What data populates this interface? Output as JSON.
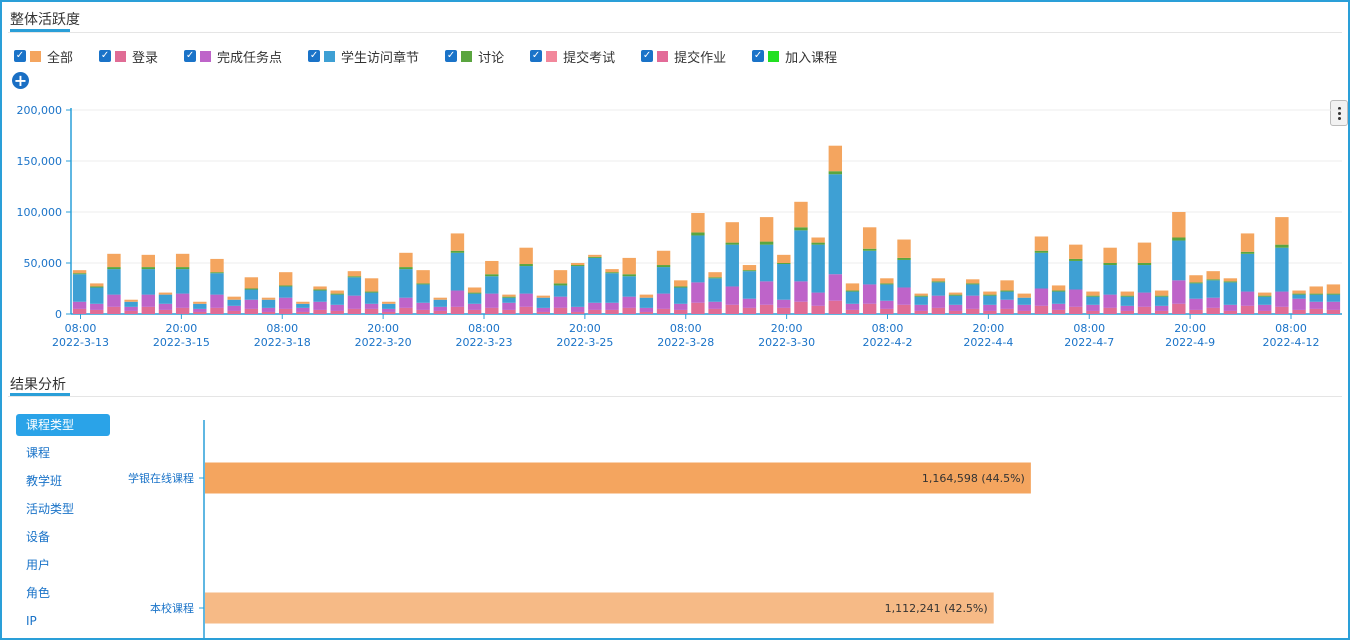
{
  "sections": {
    "activity_title": "整体活跃度",
    "analysis_title": "结果分析"
  },
  "legend": [
    {
      "label": "全部",
      "color": "#f4a55f"
    },
    {
      "label": "登录",
      "color": "#e06c95"
    },
    {
      "label": "完成任务点",
      "color": "#be64c9"
    },
    {
      "label": "学生访问章节",
      "color": "#3ea0d4"
    },
    {
      "label": "讨论",
      "color": "#5aa53f"
    },
    {
      "label": "提交考试",
      "color": "#f2879b"
    },
    {
      "label": "提交作业",
      "color": "#e36b98"
    },
    {
      "label": "加入课程",
      "color": "#22e022"
    }
  ],
  "side_menu": [
    "课程类型",
    "课程",
    "教学班",
    "活动类型",
    "设备",
    "用户",
    "角色",
    "IP"
  ],
  "side_menu_active": 0,
  "chart_data": [
    {
      "type": "bar",
      "stacked": true,
      "ylim": [
        0,
        200000
      ],
      "yticks": [
        "0",
        "50,000",
        "100,000",
        "150,000",
        "200,000"
      ],
      "xtick_labels": [
        [
          "08:00",
          "2022-3-13"
        ],
        [
          "20:00",
          "2022-3-15"
        ],
        [
          "08:00",
          "2022-3-18"
        ],
        [
          "20:00",
          "2022-3-20"
        ],
        [
          "08:00",
          "2022-3-23"
        ],
        [
          "20:00",
          "2022-3-25"
        ],
        [
          "08:00",
          "2022-3-28"
        ],
        [
          "20:00",
          "2022-3-30"
        ],
        [
          "08:00",
          "2022-4-2"
        ],
        [
          "20:00",
          "2022-4-4"
        ],
        [
          "08:00",
          "2022-4-7"
        ],
        [
          "20:00",
          "2022-4-9"
        ],
        [
          "08:00",
          "2022-4-12"
        ]
      ],
      "series": [
        {
          "name": "登录",
          "color": "#e06c95",
          "values": [
            5000,
            4000,
            7000,
            3000,
            7000,
            4000,
            6000,
            2000,
            6000,
            3000,
            5000,
            2000,
            5000,
            2000,
            4000,
            3000,
            5000,
            5000,
            2000,
            6000,
            4000,
            3000,
            7000,
            4000,
            6000,
            4000,
            7000,
            2000,
            6000,
            2000,
            4000,
            4000,
            6000,
            2000,
            5000,
            4000,
            11000,
            5000,
            9000,
            6000,
            9000,
            6000,
            12000,
            8000,
            13000,
            4000,
            10000,
            5000,
            9000,
            3000,
            6000,
            3000,
            5000,
            3000,
            5000,
            3000,
            8000,
            4000,
            7000,
            3000,
            6000,
            3000,
            7000,
            3000,
            10000,
            4000,
            6000,
            3000,
            8000,
            3000,
            7000,
            4000,
            5000,
            4000
          ]
        },
        {
          "name": "完成任务点",
          "color": "#be64c9",
          "values": [
            7000,
            6000,
            12000,
            4000,
            12000,
            6000,
            14000,
            3000,
            13000,
            5000,
            9000,
            4000,
            11000,
            4000,
            8000,
            6000,
            13000,
            5000,
            3000,
            10000,
            7000,
            4000,
            16000,
            6000,
            14000,
            7000,
            13000,
            4000,
            11000,
            5000,
            7000,
            7000,
            11000,
            4000,
            15000,
            6000,
            20000,
            7000,
            18000,
            9000,
            23000,
            8000,
            20000,
            13000,
            26000,
            6000,
            19000,
            8000,
            17000,
            6000,
            12000,
            6000,
            13000,
            6000,
            9000,
            6000,
            17000,
            6000,
            17000,
            6000,
            13000,
            5000,
            14000,
            5000,
            23000,
            11000,
            10000,
            6000,
            14000,
            6000,
            15000,
            11000,
            7000,
            8000
          ]
        },
        {
          "name": "学生访问章节",
          "color": "#3ea0d4",
          "values": [
            27000,
            16000,
            25000,
            5000,
            25000,
            9000,
            24000,
            5000,
            21000,
            6000,
            10000,
            8000,
            11000,
            4000,
            11000,
            10000,
            18000,
            11000,
            5000,
            28000,
            18000,
            7000,
            37000,
            10000,
            17000,
            5000,
            27000,
            10000,
            11000,
            40000,
            44000,
            29000,
            20000,
            10000,
            26000,
            16000,
            46000,
            23000,
            41000,
            27000,
            36000,
            35000,
            50000,
            47000,
            98000,
            12000,
            33000,
            16000,
            27000,
            8000,
            13000,
            9000,
            11000,
            9000,
            8000,
            7000,
            35000,
            12000,
            28000,
            8000,
            29000,
            9000,
            27000,
            9000,
            39000,
            15000,
            17000,
            22000,
            37000,
            8000,
            43000,
            4000,
            7000,
            7000
          ]
        },
        {
          "name": "讨论",
          "color": "#5aa53f",
          "values": [
            1000,
            1000,
            2000,
            0,
            2000,
            0,
            2000,
            0,
            1000,
            0,
            1000,
            0,
            1000,
            0,
            1000,
            1000,
            1000,
            1000,
            0,
            2000,
            1000,
            0,
            2000,
            1000,
            2000,
            1000,
            2000,
            0,
            2000,
            1000,
            1000,
            1000,
            2000,
            0,
            2000,
            1000,
            3000,
            1000,
            2000,
            1000,
            3000,
            1000,
            3000,
            2000,
            3000,
            1000,
            2000,
            1000,
            2000,
            1000,
            1000,
            1000,
            1000,
            1000,
            1000,
            0,
            2000,
            1000,
            2000,
            1000,
            2000,
            1000,
            2000,
            1000,
            3000,
            1000,
            1000,
            1000,
            2000,
            1000,
            3000,
            1000,
            1000,
            1000
          ]
        },
        {
          "name": "全部",
          "color": "#f4a55f",
          "values": [
            3000,
            3000,
            13000,
            2000,
            12000,
            2000,
            13000,
            2000,
            13000,
            3000,
            11000,
            2000,
            13000,
            2000,
            3000,
            3000,
            5000,
            13000,
            2000,
            14000,
            13000,
            2000,
            17000,
            5000,
            13000,
            2000,
            16000,
            2000,
            13000,
            2000,
            2000,
            3000,
            16000,
            3000,
            14000,
            6000,
            19000,
            5000,
            20000,
            5000,
            24000,
            8000,
            25000,
            5000,
            25000,
            7000,
            21000,
            5000,
            18000,
            2000,
            3000,
            2000,
            4000,
            3000,
            10000,
            4000,
            14000,
            5000,
            14000,
            4000,
            15000,
            4000,
            20000,
            5000,
            25000,
            7000,
            8000,
            3000,
            18000,
            3000,
            27000,
            3000,
            7000,
            9000
          ]
        }
      ]
    },
    {
      "type": "bar",
      "orientation": "horizontal",
      "categories": [
        "学银在线课程",
        "本校课程"
      ],
      "values": [
        1164598,
        1112241
      ],
      "value_labels": [
        "1,164,598 (44.5%)",
        "1,112,241 (42.5%)"
      ],
      "colors": [
        "#f4a55f",
        "#f6ba86"
      ],
      "xlim": [
        0,
        1600000
      ]
    }
  ]
}
